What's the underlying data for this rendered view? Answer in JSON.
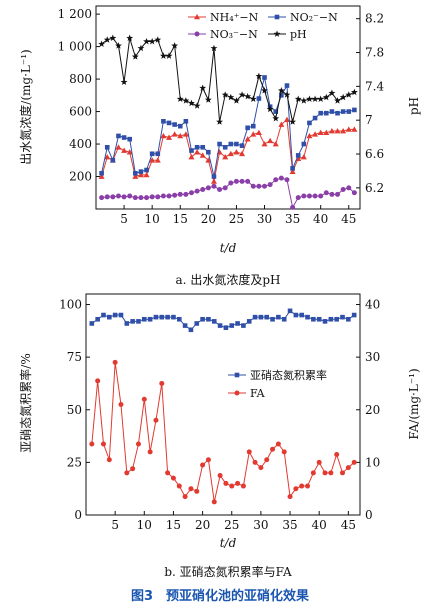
{
  "figure_caption": "图3　预亚硝化池的亚硝化效果",
  "colors": {
    "red": "#e23a30",
    "blue": "#2f4fa8",
    "purple": "#8a3fa8",
    "black": "#111111"
  },
  "chart_data": [
    {
      "type": "line",
      "caption": "a. 出水氮浓度及pH",
      "xlabel": "t/d",
      "ylabel": "出水氮浓度/(mg·L⁻¹)",
      "ylabel_right": "pH",
      "xlim": [
        0,
        47
      ],
      "ylim": [
        0,
        1250
      ],
      "ylim_right": [
        5.95,
        8.35
      ],
      "xticks": [
        5,
        10,
        15,
        20,
        25,
        30,
        35,
        40,
        45
      ],
      "yticks": [
        200,
        400,
        600,
        800,
        1000,
        1200
      ],
      "ytick_labels": [
        "200",
        "400",
        "600",
        "800",
        "1 000",
        "1 200"
      ],
      "yticks_right": [
        6.2,
        6.6,
        7.0,
        7.4,
        7.8,
        8.2
      ],
      "legend_position": "top-right",
      "series": [
        {
          "name": "NH₄⁺−N",
          "axis": "left",
          "marker": "triangle",
          "color": "#e23a30",
          "x": [
            1,
            2,
            3,
            4,
            5,
            6,
            7,
            8,
            9,
            10,
            11,
            12,
            13,
            14,
            15,
            16,
            17,
            18,
            19,
            20,
            21,
            22,
            23,
            24,
            25,
            26,
            27,
            28,
            29,
            30,
            31,
            32,
            33,
            34,
            35,
            36,
            37,
            38,
            39,
            40,
            41,
            42,
            43,
            44,
            45,
            46
          ],
          "values": [
            200,
            320,
            300,
            380,
            360,
            350,
            200,
            210,
            210,
            300,
            300,
            450,
            440,
            460,
            450,
            460,
            320,
            350,
            330,
            300,
            170,
            350,
            320,
            340,
            350,
            340,
            430,
            460,
            470,
            400,
            420,
            400,
            520,
            550,
            230,
            310,
            320,
            450,
            460,
            470,
            470,
            480,
            480,
            480,
            490,
            490
          ]
        },
        {
          "name": "NO₂⁻−N",
          "axis": "left",
          "marker": "square",
          "color": "#2f4fa8",
          "x": [
            1,
            2,
            3,
            4,
            5,
            6,
            7,
            8,
            9,
            10,
            11,
            12,
            13,
            14,
            15,
            16,
            17,
            18,
            19,
            20,
            21,
            22,
            23,
            24,
            25,
            26,
            27,
            28,
            29,
            30,
            31,
            32,
            33,
            34,
            35,
            36,
            37,
            38,
            39,
            40,
            41,
            42,
            43,
            44,
            45,
            46
          ],
          "values": [
            220,
            380,
            300,
            450,
            440,
            430,
            220,
            230,
            240,
            340,
            340,
            540,
            530,
            520,
            510,
            540,
            360,
            380,
            380,
            350,
            200,
            400,
            380,
            400,
            400,
            390,
            500,
            510,
            680,
            810,
            630,
            600,
            700,
            760,
            250,
            330,
            400,
            530,
            560,
            590,
            590,
            600,
            590,
            600,
            600,
            610
          ]
        },
        {
          "name": "NO₃⁻−N",
          "axis": "left",
          "marker": "circle",
          "color": "#8a3fa8",
          "x": [
            1,
            2,
            3,
            4,
            5,
            6,
            7,
            8,
            9,
            10,
            11,
            12,
            13,
            14,
            15,
            16,
            17,
            18,
            19,
            20,
            21,
            22,
            23,
            24,
            25,
            26,
            27,
            28,
            29,
            30,
            31,
            32,
            33,
            34,
            35,
            36,
            37,
            38,
            39,
            40,
            41,
            42,
            43,
            44,
            45,
            46
          ],
          "values": [
            70,
            75,
            75,
            80,
            75,
            80,
            70,
            70,
            70,
            75,
            75,
            80,
            80,
            85,
            90,
            90,
            100,
            110,
            120,
            130,
            140,
            120,
            130,
            160,
            170,
            170,
            170,
            140,
            140,
            140,
            150,
            180,
            190,
            180,
            10,
            70,
            80,
            80,
            80,
            80,
            100,
            90,
            90,
            120,
            130,
            100
          ]
        },
        {
          "name": "pH",
          "axis": "right",
          "marker": "star",
          "color": "#111111",
          "x": [
            1,
            2,
            3,
            4,
            5,
            6,
            7,
            8,
            9,
            10,
            11,
            12,
            13,
            14,
            15,
            16,
            17,
            18,
            19,
            20,
            21,
            22,
            23,
            24,
            25,
            26,
            27,
            28,
            29,
            30,
            31,
            32,
            33,
            34,
            35,
            36,
            37,
            38,
            39,
            40,
            41,
            42,
            43,
            44,
            45,
            46
          ],
          "values": [
            7.9,
            7.95,
            7.97,
            7.88,
            7.45,
            7.97,
            7.75,
            7.85,
            7.93,
            7.93,
            7.95,
            7.76,
            7.76,
            7.88,
            7.25,
            7.23,
            7.2,
            7.17,
            7.38,
            7.24,
            7.85,
            6.98,
            7.3,
            7.27,
            7.23,
            7.3,
            7.28,
            7.25,
            7.52,
            7.35,
            7.13,
            7.02,
            7.35,
            7.3,
            6.98,
            7.25,
            7.23,
            7.25,
            7.25,
            7.25,
            7.27,
            7.32,
            7.23,
            7.27,
            7.3,
            7.33
          ]
        }
      ]
    },
    {
      "type": "line",
      "caption": "b. 亚硝态氮积累率与FA",
      "xlabel": "t/d",
      "ylabel": "亚硝态氮积累率/%",
      "ylabel_right": "FA/(mg·L⁻¹)",
      "xlim": [
        0,
        47
      ],
      "ylim": [
        0,
        105
      ],
      "ylim_right": [
        0,
        42
      ],
      "xticks": [
        5,
        10,
        15,
        20,
        25,
        30,
        35,
        40,
        45
      ],
      "yticks": [
        0,
        25,
        50,
        75,
        100
      ],
      "yticks_right": [
        0,
        10,
        20,
        30,
        40
      ],
      "legend_position": "center-right",
      "series": [
        {
          "name": "亚硝态氮积累率",
          "axis": "left",
          "marker": "square",
          "color": "#2f4fa8",
          "x": [
            1,
            2,
            3,
            4,
            5,
            6,
            7,
            8,
            9,
            10,
            11,
            12,
            13,
            14,
            15,
            16,
            17,
            18,
            19,
            20,
            21,
            22,
            23,
            24,
            25,
            26,
            27,
            28,
            29,
            30,
            31,
            32,
            33,
            34,
            35,
            36,
            37,
            38,
            39,
            40,
            41,
            42,
            43,
            44,
            45,
            46
          ],
          "values": [
            91,
            93,
            95,
            94,
            95,
            95,
            91,
            92,
            92,
            93,
            93,
            94,
            94,
            94,
            94,
            93,
            90,
            88,
            91,
            93,
            93,
            92,
            90,
            89,
            90,
            91,
            90,
            92,
            94,
            94,
            94,
            93,
            94,
            93,
            97,
            95,
            95,
            94,
            93,
            93,
            92,
            93,
            93,
            94,
            93,
            95
          ]
        },
        {
          "name": "FA",
          "axis": "right",
          "marker": "circle",
          "color": "#e23a30",
          "x": [
            1,
            2,
            3,
            4,
            5,
            6,
            7,
            8,
            9,
            10,
            11,
            12,
            13,
            14,
            15,
            16,
            17,
            18,
            19,
            20,
            21,
            22,
            23,
            24,
            25,
            26,
            27,
            28,
            29,
            30,
            31,
            32,
            33,
            34,
            35,
            36,
            37,
            38,
            39,
            40,
            41,
            42,
            43,
            44,
            45,
            46
          ],
          "values": [
            13.5,
            25.5,
            13.5,
            10.5,
            29,
            21,
            8,
            8.8,
            13.5,
            22,
            12,
            18,
            25,
            8,
            7,
            5.5,
            3.5,
            5,
            4.5,
            9.5,
            10.5,
            2.5,
            7.5,
            6,
            5.5,
            6,
            5.5,
            12,
            10,
            9,
            10.5,
            12.5,
            13.5,
            12,
            3.5,
            5,
            5.5,
            5.5,
            8,
            10,
            8,
            8,
            11.5,
            8,
            9,
            10
          ]
        }
      ]
    }
  ]
}
